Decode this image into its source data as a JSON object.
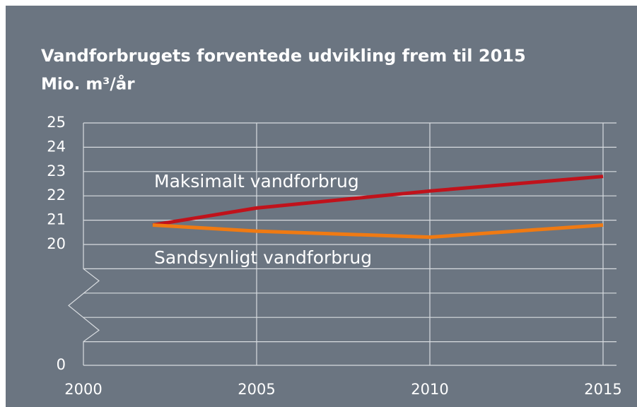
{
  "chart_data": {
    "type": "line",
    "title": "Vandforbrugets forventede udvikling frem til 2015",
    "subtitle": "Mio. m³/år",
    "x": [
      2002,
      2005,
      2010,
      2015
    ],
    "series": [
      {
        "name": "Maksimalt vandforbrug",
        "color": "#c0121b",
        "values": [
          20.8,
          21.5,
          22.2,
          22.8
        ]
      },
      {
        "name": "Sandsynligt vandforbrug",
        "color": "#f07a12",
        "values": [
          20.8,
          20.55,
          20.3,
          20.8
        ]
      }
    ],
    "xlim": [
      2000,
      2015
    ],
    "xticks": [
      2000,
      2005,
      2010,
      2015
    ],
    "ylim": [
      0,
      25
    ],
    "y_break": [
      0,
      20
    ],
    "yticks": [
      0,
      20,
      21,
      22,
      23,
      24,
      25
    ],
    "grid": true
  }
}
